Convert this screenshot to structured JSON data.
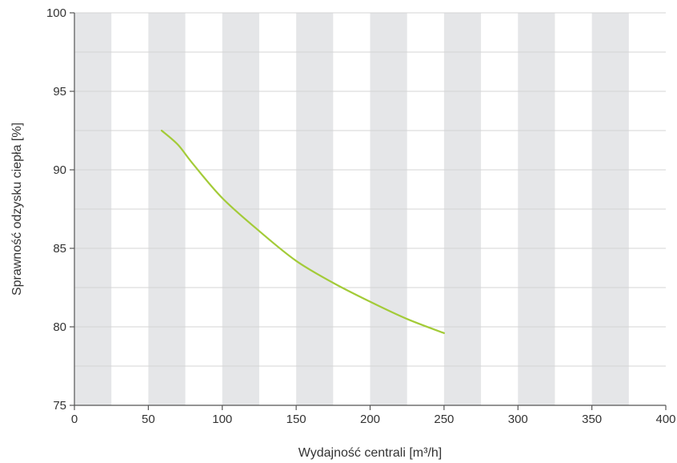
{
  "chart_data": {
    "type": "line",
    "title": "",
    "xlabel": "Wydajność centrali [m³/h]",
    "ylabel": "Sprawność odzysku ciepła [%]",
    "xlim": [
      0,
      400
    ],
    "ylim": [
      75,
      100
    ],
    "xticks": [
      0,
      50,
      100,
      150,
      200,
      250,
      300,
      350,
      400
    ],
    "yticks": [
      75,
      80,
      85,
      90,
      95,
      100
    ],
    "background_bands": [
      [
        0,
        25
      ],
      [
        50,
        75
      ],
      [
        100,
        125
      ],
      [
        150,
        175
      ],
      [
        200,
        225
      ],
      [
        250,
        275
      ],
      [
        300,
        325
      ],
      [
        350,
        375
      ]
    ],
    "band_color": "#e5e6e8",
    "grid": "horizontal every 2.5",
    "series": [
      {
        "color": "#a3cb38",
        "points": [
          [
            59,
            92.5
          ],
          [
            70,
            91.6
          ],
          [
            80,
            90.4
          ],
          [
            100,
            88.2
          ],
          [
            125,
            86.1
          ],
          [
            150,
            84.2
          ],
          [
            175,
            82.8
          ],
          [
            200,
            81.6
          ],
          [
            225,
            80.5
          ],
          [
            250,
            79.6
          ]
        ]
      }
    ]
  }
}
